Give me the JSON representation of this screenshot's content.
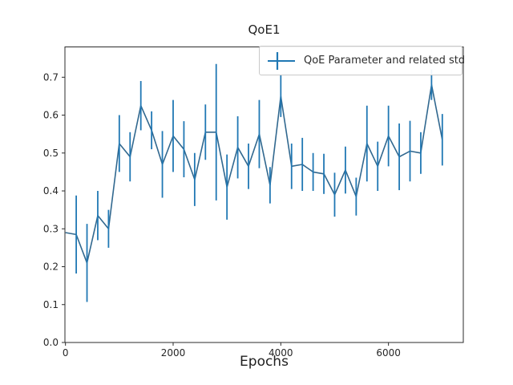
{
  "figure": {
    "background": "#ffffff"
  },
  "chart_data": {
    "type": "line",
    "title": "QoE1",
    "xlabel": "Epochs",
    "ylabel": "",
    "legend": [
      "QoE Parameter and related std"
    ],
    "legend_position": "upper right",
    "grid": false,
    "line_color": "#31688f",
    "errorbar_color": "#2078b4",
    "axis_color": "#2b2b2b",
    "text_color": "#262626",
    "xlim": [
      -10,
      7390
    ],
    "ylim": [
      0,
      0.78
    ],
    "xticks": [
      0,
      2000,
      4000,
      6000
    ],
    "yticks": [
      "0.0",
      "0.1",
      "0.2",
      "0.3",
      "0.4",
      "0.5",
      "0.6",
      "0.7"
    ],
    "series": [
      {
        "name": "QoE Parameter and related std",
        "x": [
          0,
          200,
          400,
          600,
          800,
          1000,
          1200,
          1400,
          1600,
          1800,
          2000,
          2200,
          2400,
          2600,
          2800,
          3000,
          3200,
          3400,
          3600,
          3800,
          4000,
          4200,
          4400,
          4600,
          4800,
          5000,
          5200,
          5400,
          5600,
          5800,
          6000,
          6200,
          6400,
          6600,
          6800,
          7000
        ],
        "y": [
          0.29,
          0.285,
          0.21,
          0.335,
          0.3,
          0.525,
          0.49,
          0.625,
          0.56,
          0.47,
          0.545,
          0.51,
          0.43,
          0.555,
          0.555,
          0.41,
          0.515,
          0.465,
          0.55,
          0.415,
          0.65,
          0.465,
          0.47,
          0.45,
          0.445,
          0.39,
          0.455,
          0.385,
          0.525,
          0.465,
          0.545,
          0.49,
          0.505,
          0.5,
          0.68,
          0.535
        ],
        "yerr": [
          0.0,
          0.103,
          0.103,
          0.065,
          0.05,
          0.075,
          0.065,
          0.065,
          0.05,
          0.088,
          0.095,
          0.074,
          0.07,
          0.073,
          0.18,
          0.086,
          0.082,
          0.06,
          0.09,
          0.048,
          0.055,
          0.06,
          0.07,
          0.05,
          0.053,
          0.058,
          0.062,
          0.05,
          0.1,
          0.065,
          0.08,
          0.088,
          0.08,
          0.055,
          0.04,
          0.068
        ]
      }
    ]
  }
}
